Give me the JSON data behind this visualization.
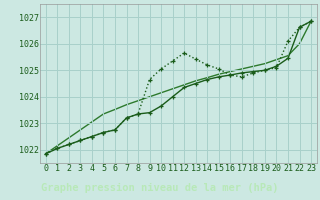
{
  "title": "Graphe pression niveau de la mer (hPa)",
  "background_color": "#cce8e2",
  "grid_color": "#a8d0ca",
  "line_color_main": "#1a5c1a",
  "line_color_dot": "#2d7a2d",
  "x_labels": [
    "0",
    "1",
    "2",
    "3",
    "4",
    "5",
    "6",
    "7",
    "8",
    "9",
    "10",
    "11",
    "12",
    "13",
    "14",
    "15",
    "16",
    "17",
    "18",
    "19",
    "20",
    "21",
    "22",
    "23"
  ],
  "ylim": [
    1021.5,
    1027.5
  ],
  "yticks": [
    1022,
    1023,
    1024,
    1025,
    1026,
    1027
  ],
  "series_dotted": [
    1021.85,
    1022.05,
    1022.2,
    1022.35,
    1022.5,
    1022.65,
    1022.75,
    1023.2,
    1023.35,
    1024.65,
    1025.05,
    1025.35,
    1025.65,
    1025.42,
    1025.2,
    1025.05,
    1024.82,
    1024.75,
    1024.9,
    1025.0,
    1025.1,
    1026.1,
    1026.62,
    1026.85
  ],
  "series_solid": [
    1021.85,
    1022.05,
    1022.2,
    1022.35,
    1022.5,
    1022.65,
    1022.75,
    1023.2,
    1023.35,
    1023.4,
    1023.65,
    1024.0,
    1024.35,
    1024.5,
    1024.65,
    1024.75,
    1024.82,
    1024.9,
    1024.95,
    1025.0,
    1025.15,
    1025.45,
    1026.62,
    1026.85
  ],
  "series_trend": [
    1021.85,
    1022.15,
    1022.45,
    1022.75,
    1023.05,
    1023.35,
    1023.52,
    1023.7,
    1023.85,
    1024.0,
    1024.15,
    1024.3,
    1024.45,
    1024.6,
    1024.72,
    1024.85,
    1024.95,
    1025.05,
    1025.15,
    1025.25,
    1025.4,
    1025.55,
    1026.0,
    1026.85
  ],
  "line_width": 1.0,
  "marker_size": 3.5,
  "tick_fontsize": 6.0,
  "label_fontsize": 7.5,
  "bottom_bg": "#2d6e2d",
  "bottom_text_color": "#b8e8b8"
}
